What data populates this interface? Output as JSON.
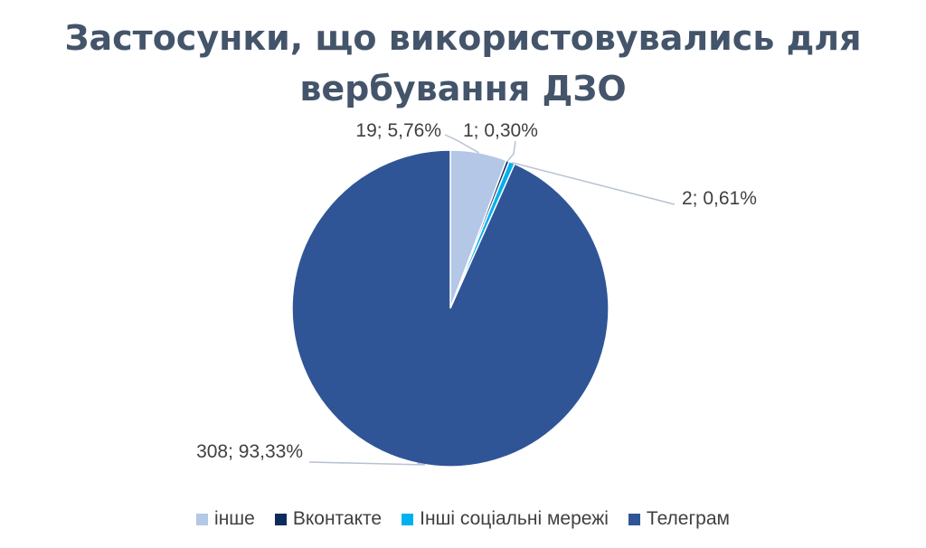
{
  "chart_data": {
    "type": "pie",
    "title_line1": "Застосунки, що використовувались для",
    "title_line2": "вербування ДЗО",
    "slices": [
      {
        "name": "інше",
        "value": 19,
        "percent": 5.76,
        "label": "19; 5,76%",
        "color": "#b4c7e7"
      },
      {
        "name": "Вконтакте",
        "value": 1,
        "percent": 0.3,
        "label": "1; 0,30%",
        "color": "#0c2a5c"
      },
      {
        "name": "Інші соціальні мережі",
        "value": 2,
        "percent": 0.61,
        "label": "2; 0,61%",
        "color": "#00b0f0"
      },
      {
        "name": "Телеграм",
        "value": 308,
        "percent": 93.33,
        "label": "308; 93,33%",
        "color": "#2f5597"
      }
    ],
    "legend_position": "bottom"
  }
}
